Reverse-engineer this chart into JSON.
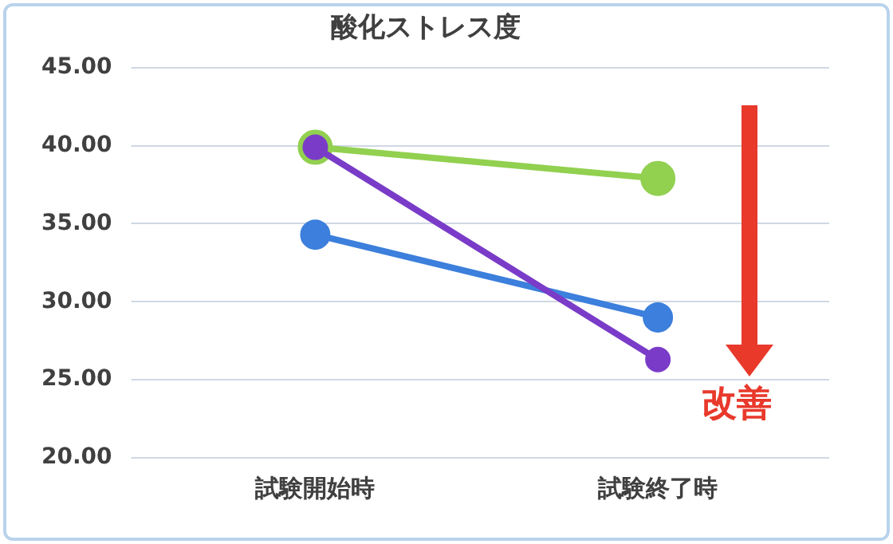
{
  "chart_data": {
    "type": "line",
    "title": "酸化ストレス度",
    "categories": [
      "試験開始時",
      "試験終了時"
    ],
    "series": [
      {
        "color": "#92d050",
        "values": [
          39.9,
          37.9
        ]
      },
      {
        "color": "#3c7fdc",
        "values": [
          34.3,
          29.0
        ]
      },
      {
        "color": "#7a3cc8",
        "values": [
          39.9,
          26.3
        ]
      }
    ],
    "ylim": [
      20,
      45
    ],
    "yticks": [
      {
        "value": 20,
        "label": "20.00"
      },
      {
        "value": 25,
        "label": "25.00"
      },
      {
        "value": 30,
        "label": "30.00"
      },
      {
        "value": 35,
        "label": "35.00"
      },
      {
        "value": 40,
        "label": "40.00"
      },
      {
        "value": 45,
        "label": "45.00"
      }
    ],
    "grid": "y",
    "legend": false,
    "marker": "circle",
    "line_style": "solid",
    "annotations": [
      "改善"
    ]
  }
}
